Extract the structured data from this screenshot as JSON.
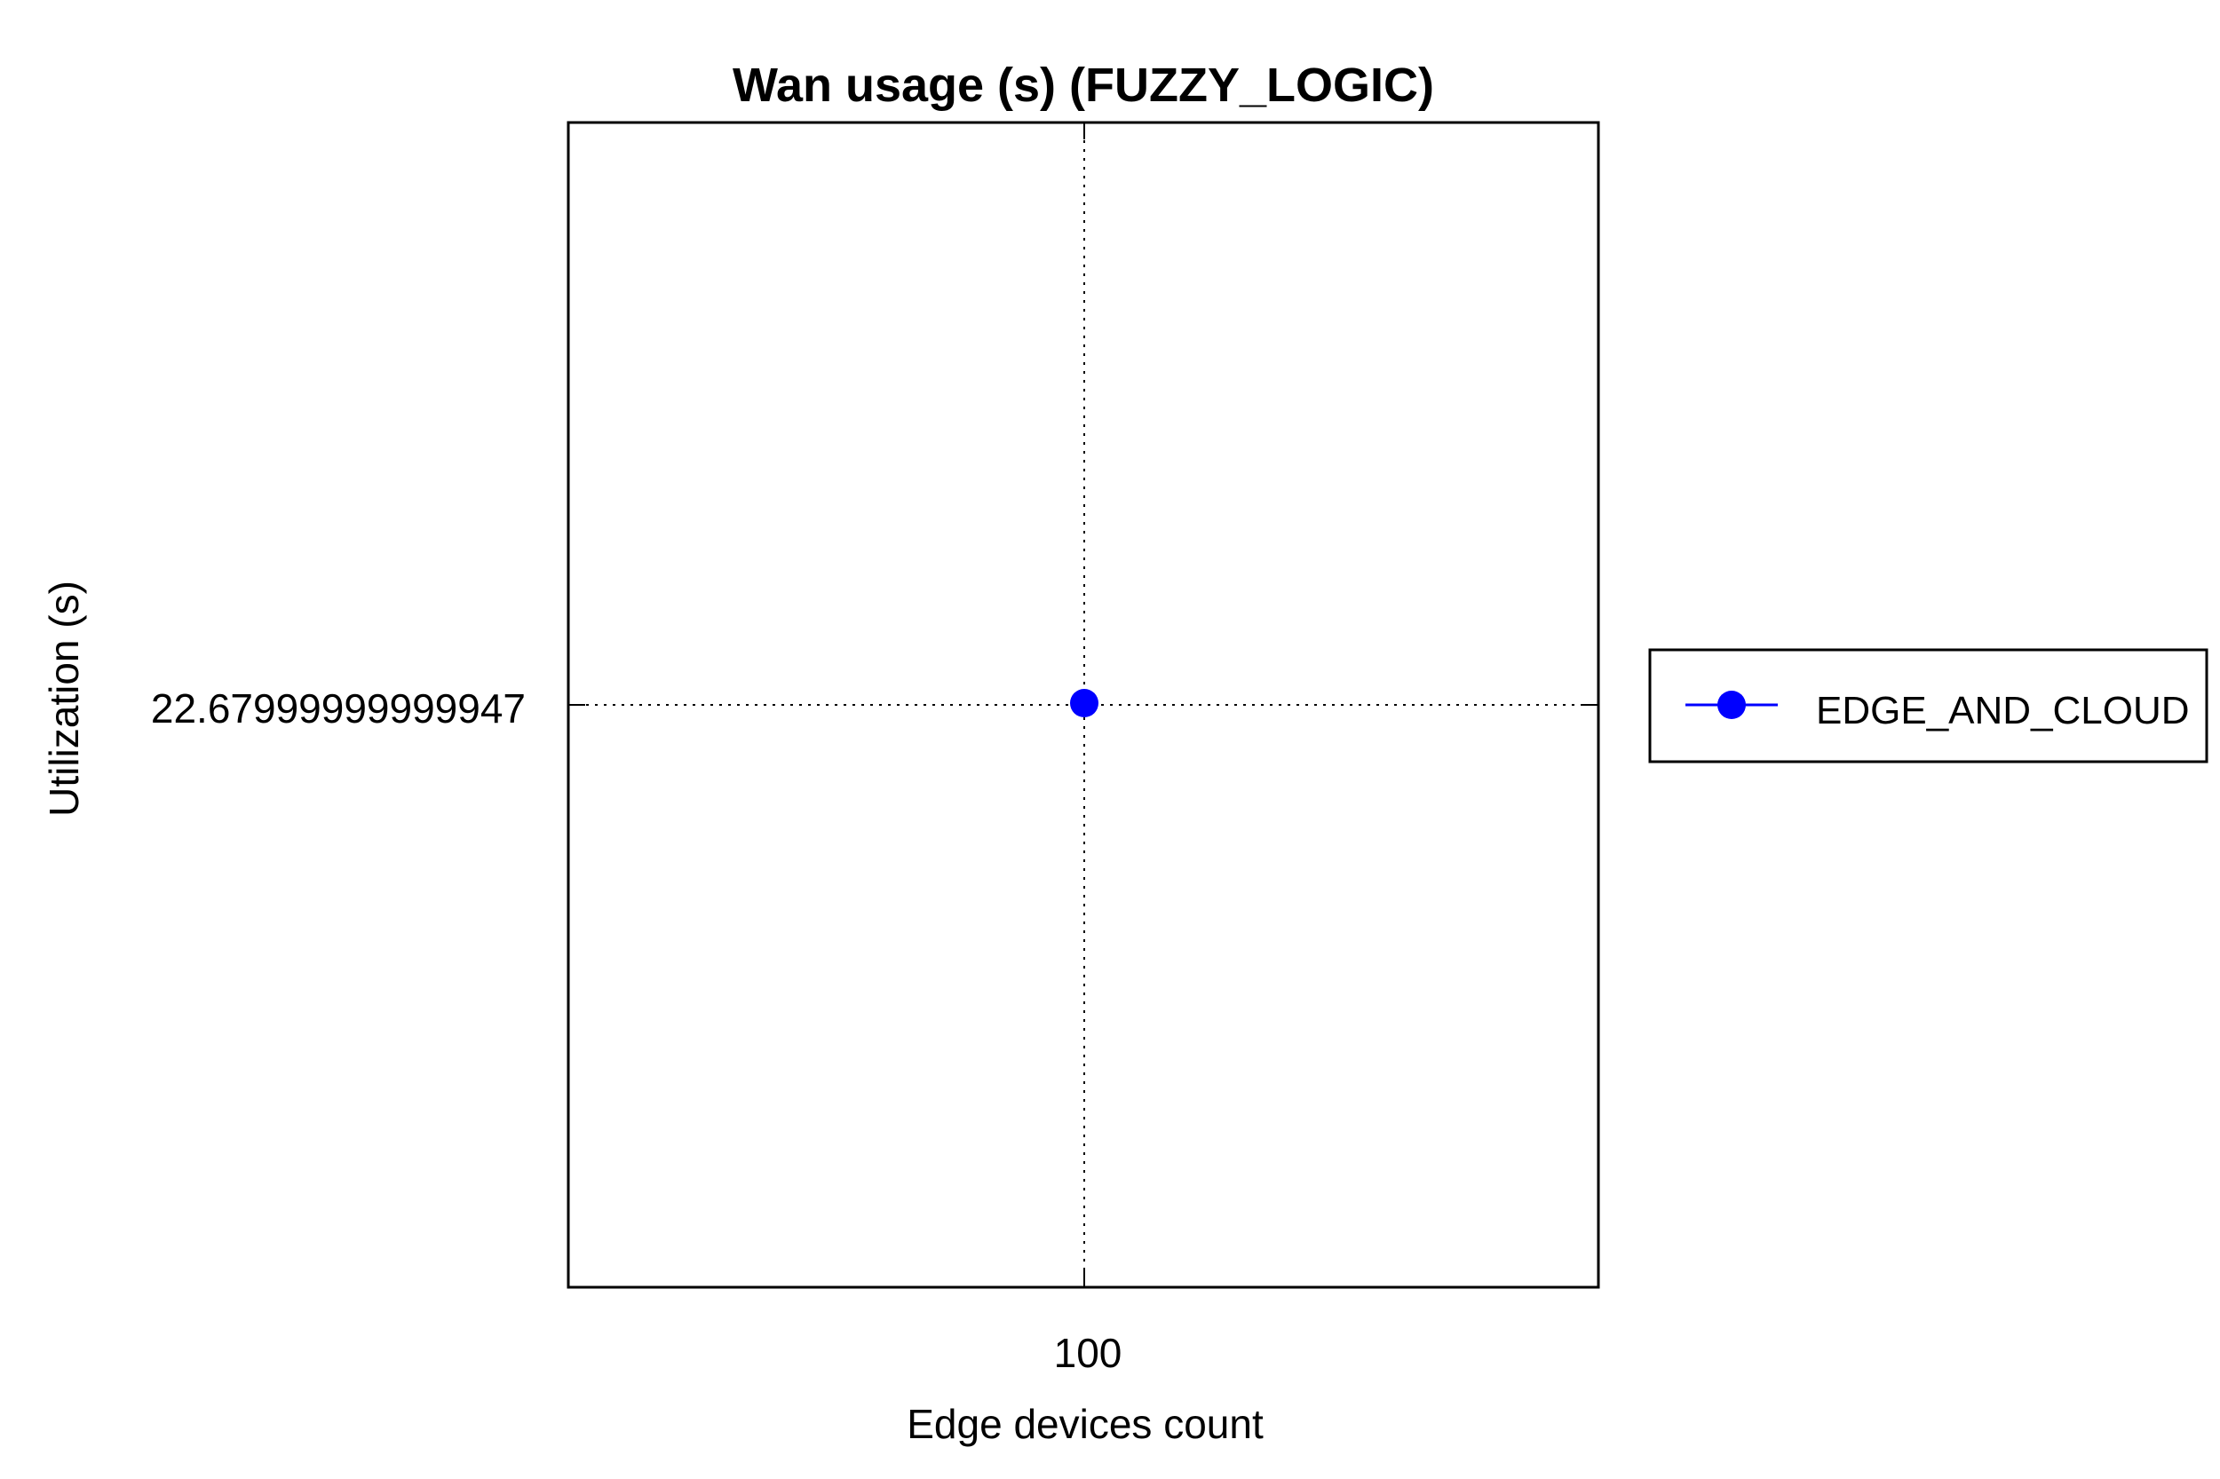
{
  "chart_data": {
    "type": "line",
    "title": "Wan usage (s) (FUZZY_LOGIC)",
    "xlabel": "Edge devices count",
    "ylabel": "Utilization (s)",
    "x_tick_labels": [
      "100"
    ],
    "y_tick_labels": [
      "22.67999999999947"
    ],
    "x": [
      100
    ],
    "series": [
      {
        "name": "EDGE_AND_CLOUD",
        "values": [
          22.67999999999947
        ],
        "color": "#0000ff",
        "marker": "circle"
      }
    ],
    "grid": true,
    "legend_position": "outside-right"
  }
}
